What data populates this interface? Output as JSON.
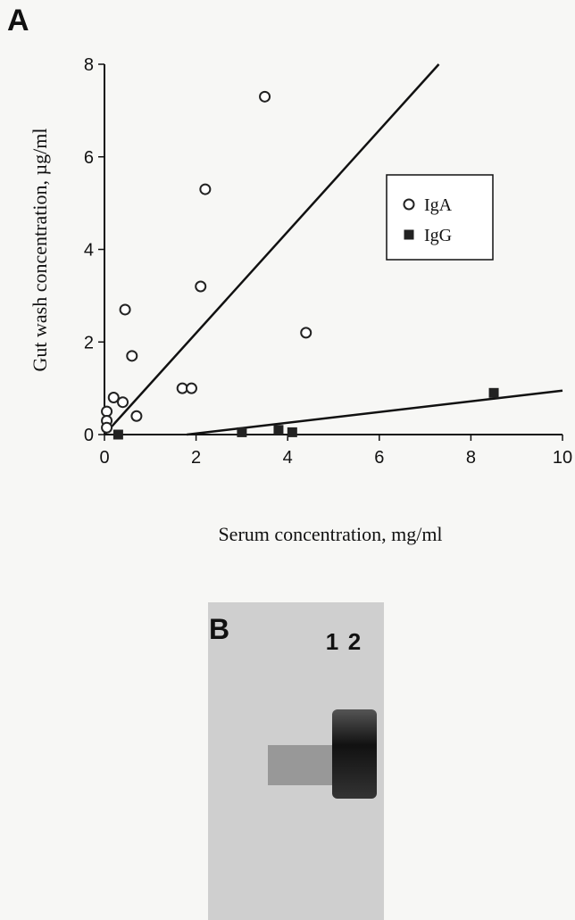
{
  "panels": {
    "a": "A",
    "b": "B",
    "lanes": [
      "1",
      "2"
    ]
  },
  "chart_data": {
    "type": "scatter",
    "x_label": "Serum concentration, mg/ml",
    "y_label": "Gut wash concentration, µg/ml",
    "xlim": [
      0,
      10
    ],
    "ylim": [
      0,
      8
    ],
    "xticks": [
      0,
      2,
      4,
      6,
      8,
      10
    ],
    "yticks": [
      0,
      2,
      4,
      6,
      8
    ],
    "legend": "upper right",
    "series": [
      {
        "name": "IgA",
        "marker": "open-circle",
        "color": "#222222",
        "x": [
          3.5,
          2.2,
          2.1,
          0.45,
          4.4,
          0.6,
          1.7,
          1.9,
          0.2,
          0.4,
          0.7,
          0.05,
          0.05,
          0.05
        ],
        "y": [
          7.3,
          5.3,
          3.2,
          2.7,
          2.2,
          1.7,
          1.0,
          1.0,
          0.8,
          0.7,
          0.4,
          0.5,
          0.3,
          0.15
        ]
      },
      {
        "name": "IgG",
        "marker": "filled-square",
        "color": "#222222",
        "x": [
          0.3,
          3.0,
          3.8,
          4.1,
          8.5
        ],
        "y": [
          0.0,
          0.05,
          0.1,
          0.05,
          0.9
        ]
      }
    ],
    "fit_lines": [
      {
        "x": [
          0,
          7.3
        ],
        "y": [
          0,
          8
        ]
      },
      {
        "x": [
          1.8,
          10
        ],
        "y": [
          0,
          0.95
        ]
      }
    ]
  }
}
